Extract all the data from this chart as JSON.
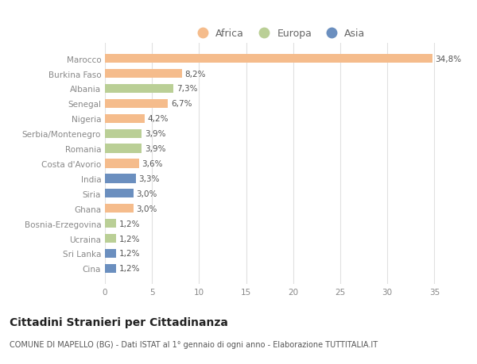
{
  "countries": [
    "Marocco",
    "Burkina Faso",
    "Albania",
    "Senegal",
    "Nigeria",
    "Serbia/Montenegro",
    "Romania",
    "Costa d'Avorio",
    "India",
    "Siria",
    "Ghana",
    "Bosnia-Erzegovina",
    "Ucraina",
    "Sri Lanka",
    "Cina"
  ],
  "values": [
    34.8,
    8.2,
    7.3,
    6.7,
    4.2,
    3.9,
    3.9,
    3.6,
    3.3,
    3.0,
    3.0,
    1.2,
    1.2,
    1.2,
    1.2
  ],
  "labels": [
    "34,8%",
    "8,2%",
    "7,3%",
    "6,7%",
    "4,2%",
    "3,9%",
    "3,9%",
    "3,6%",
    "3,3%",
    "3,0%",
    "3,0%",
    "1,2%",
    "1,2%",
    "1,2%",
    "1,2%"
  ],
  "continents": [
    "Africa",
    "Africa",
    "Europa",
    "Africa",
    "Africa",
    "Europa",
    "Europa",
    "Africa",
    "Asia",
    "Asia",
    "Africa",
    "Europa",
    "Europa",
    "Asia",
    "Asia"
  ],
  "colors": {
    "Africa": "#F5BC8C",
    "Europa": "#BACF96",
    "Asia": "#6B8FBF"
  },
  "xlim": [
    0,
    37
  ],
  "xticks": [
    0,
    5,
    10,
    15,
    20,
    25,
    30,
    35
  ],
  "title": "Cittadini Stranieri per Cittadinanza",
  "subtitle": "COMUNE DI MAPELLO (BG) - Dati ISTAT al 1° gennaio di ogni anno - Elaborazione TUTTITALIA.IT",
  "background_color": "#ffffff",
  "grid_color": "#e0e0e0",
  "label_fontsize": 7.5,
  "tick_fontsize": 7.5,
  "title_fontsize": 10,
  "subtitle_fontsize": 7
}
